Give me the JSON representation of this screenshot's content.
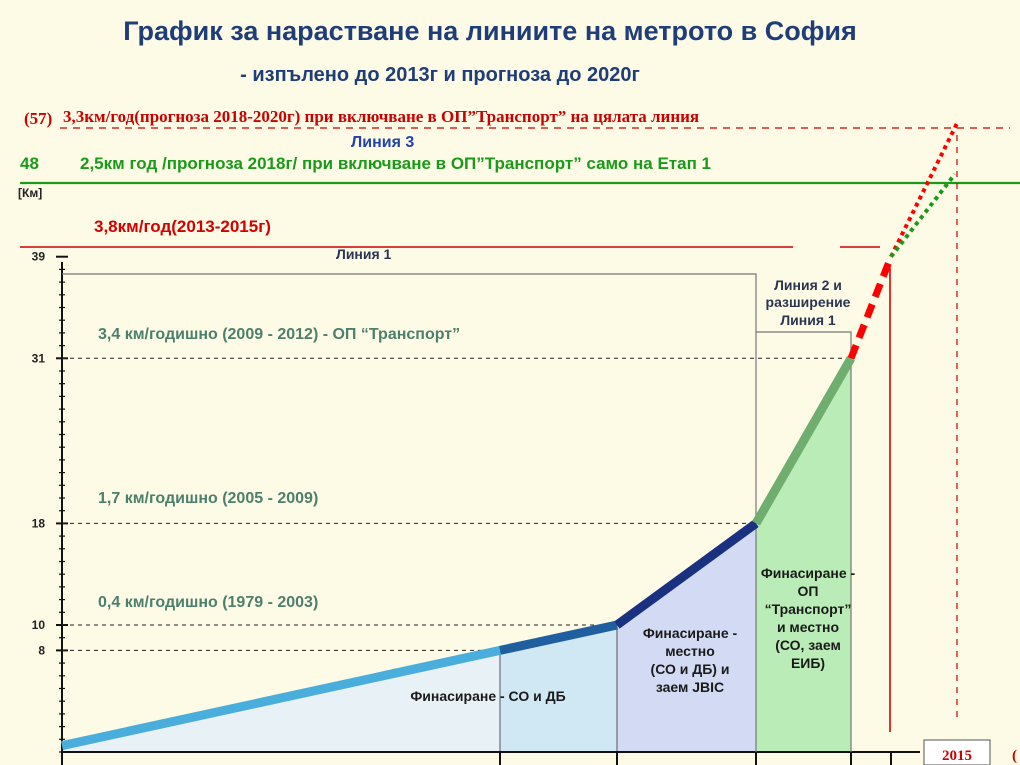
{
  "title": "График за нарастване на линиите на метрото в София",
  "subtitle": "- изпълено до 2013г и прогноза до 2020г",
  "annotations": {
    "red_top_prefix": "(57)",
    "red_top": "3,3км/год(прогноза 2018-2020г) при включване в ОП”Транспорт” на цялата линия",
    "line3": "Линия 3",
    "green_value": "48",
    "green_text": "2,5км год /прогноза 2018г/ при включване в ОП”Транспорт” само на Етап 1",
    "red_rate": "3,8км/год(2013-2015г)",
    "line1": "Линия 1",
    "line2_ext": [
      "Линия 2 и",
      "разширение",
      "Линия 1"
    ],
    "rate_1": "3,4 км/годишно (2009 - 2012) - ОП “Транспорт”",
    "rate_2": "1,7 км/годишно (2005 - 2009)",
    "rate_3": "0,4 км/годишно (1979 - 2003)"
  },
  "financing": {
    "f1": [
      "Финасиране - СО и ДБ"
    ],
    "f2": [
      "Финасиране -",
      "местно",
      "(СО и ДБ) и",
      "заем JBIC"
    ],
    "f3": [
      "Финасиране -",
      "ОП",
      "“Транспорт”",
      "и местно",
      "(СО, заем",
      "ЕИБ)"
    ]
  },
  "bottom": {
    "year": "2015",
    "partial": "("
  },
  "chart_data": {
    "type": "line",
    "title": "График за нарастване на линиите на метрото в София",
    "ylabel": "[Км]",
    "yticks": [
      8,
      10,
      18,
      31,
      39,
      48
    ],
    "ylim": [
      0,
      48
    ],
    "series": [
      {
        "name": "0,4 км/годишно (1979 - 2003)",
        "color": "#4aaedc",
        "points": [
          [
            1979,
            0.5
          ],
          [
            2003,
            8
          ]
        ]
      },
      {
        "name": "",
        "color": "#1f5fa0",
        "points": [
          [
            2003,
            8
          ],
          [
            2005,
            10
          ]
        ]
      },
      {
        "name": "1,7 км/годишно (2005 - 2009)",
        "color": "#1a3080",
        "points": [
          [
            2005,
            10
          ],
          [
            2009,
            18
          ]
        ]
      },
      {
        "name": "3,4 км/годишно (2009 - 2012) - ОП “Транспорт”",
        "color": "#6fae6f",
        "points": [
          [
            2009,
            18
          ],
          [
            2012,
            31
          ]
        ]
      },
      {
        "name": "3,8км/год(2013-2015г)",
        "color": "#ff0000",
        "style": "dashed",
        "points": [
          [
            2012,
            31
          ],
          [
            2013.2,
            39
          ]
        ]
      },
      {
        "name": "3,3км/год(прогноза 2018-2020г)",
        "color": "#ff0000",
        "style": "dotted",
        "points": [
          [
            2013.2,
            39
          ],
          [
            2016.3,
            49.5
          ]
        ]
      },
      {
        "name": "2,5км год /прогноза 2018г/",
        "color": "#1a9a1a",
        "style": "dotted",
        "points": [
          [
            2013.2,
            39
          ],
          [
            2016.2,
            45.5
          ]
        ]
      }
    ],
    "regions": [
      {
        "from": 1979,
        "to": 2003,
        "color": "#e8f1f6"
      },
      {
        "from": 2003,
        "to": 2005,
        "color": "#cfe8f3"
      },
      {
        "from": 2005,
        "to": 2009,
        "color": "#d3dbf4"
      },
      {
        "from": 2009,
        "to": 2012,
        "color": "#b9ecb6"
      }
    ],
    "reference_lines": [
      {
        "y": 48,
        "color": "#1a9a1a",
        "label": "48"
      },
      {
        "y": 39,
        "color": "#cc0000",
        "label": "39"
      }
    ]
  }
}
